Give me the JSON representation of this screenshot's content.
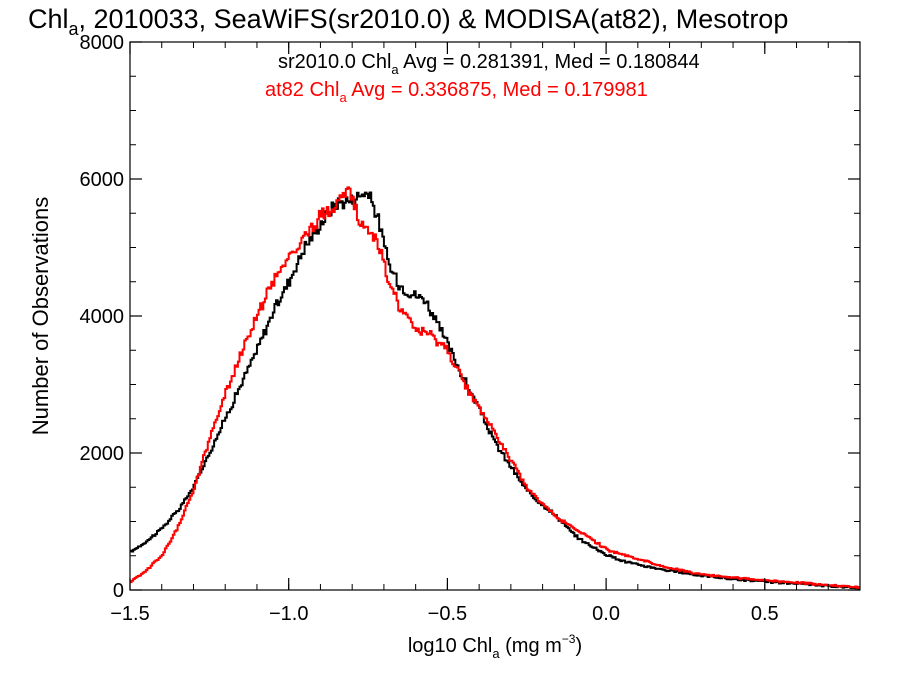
{
  "chart_data": {
    "type": "line",
    "title_parts": {
      "pre": "Chl",
      "sub": "a",
      "post": ", 2010033, SeaWiFS(sr2010.0) & MODISA(at82), Mesotrop"
    },
    "xlabel_parts": {
      "pre": "log10 Chl",
      "sub": "a",
      "mid": " (mg m",
      "sup": "−3",
      "post": ")"
    },
    "ylabel": "Number of Observations",
    "xlim": [
      -1.5,
      0.8
    ],
    "ylim": [
      0,
      8000
    ],
    "xticks": [
      {
        "value": -1.5,
        "label": "−1.5"
      },
      {
        "value": -1.0,
        "label": "−1.0"
      },
      {
        "value": -0.5,
        "label": "−0.5"
      },
      {
        "value": 0.0,
        "label": "0.0"
      },
      {
        "value": 0.5,
        "label": "0.5"
      }
    ],
    "yticks": [
      {
        "value": 0,
        "label": "0"
      },
      {
        "value": 2000,
        "label": "2000"
      },
      {
        "value": 4000,
        "label": "4000"
      },
      {
        "value": 6000,
        "label": "6000"
      },
      {
        "value": 8000,
        "label": "8000"
      }
    ],
    "annotations": [
      {
        "pre": "sr2010.0 Chl",
        "sub": "a",
        "post": " Avg = 0.281391, Med = 0.180844",
        "color": "#000000"
      },
      {
        "pre": "at82 Chl",
        "sub": "a",
        "post": " Avg = 0.336875, Med = 0.179981",
        "color": "#ff0000"
      }
    ],
    "series": [
      {
        "color": "#000000",
        "x": [
          -1.5,
          -1.45,
          -1.4,
          -1.35,
          -1.3,
          -1.25,
          -1.2,
          -1.15,
          -1.1,
          -1.05,
          -1.0,
          -0.95,
          -0.9,
          -0.85,
          -0.8,
          -0.78,
          -0.76,
          -0.74,
          -0.72,
          -0.7,
          -0.68,
          -0.65,
          -0.62,
          -0.6,
          -0.57,
          -0.55,
          -0.5,
          -0.45,
          -0.4,
          -0.35,
          -0.3,
          -0.25,
          -0.2,
          -0.15,
          -0.1,
          -0.05,
          0.0,
          0.05,
          0.1,
          0.2,
          0.3,
          0.4,
          0.5,
          0.6,
          0.7,
          0.8
        ],
        "y": [
          550,
          700,
          900,
          1150,
          1500,
          2000,
          2500,
          3000,
          3500,
          4050,
          4500,
          5000,
          5350,
          5650,
          5700,
          5750,
          5820,
          5700,
          5450,
          5050,
          4700,
          4450,
          4350,
          4300,
          4250,
          4050,
          3600,
          3100,
          2650,
          2150,
          1800,
          1450,
          1250,
          1050,
          800,
          650,
          520,
          430,
          370,
          280,
          210,
          160,
          120,
          90,
          60,
          30
        ]
      },
      {
        "color": "#ff0000",
        "x": [
          -1.5,
          -1.45,
          -1.4,
          -1.35,
          -1.3,
          -1.25,
          -1.2,
          -1.15,
          -1.1,
          -1.05,
          -1.0,
          -0.95,
          -0.9,
          -0.85,
          -0.82,
          -0.8,
          -0.78,
          -0.76,
          -0.74,
          -0.72,
          -0.7,
          -0.65,
          -0.6,
          -0.55,
          -0.5,
          -0.45,
          -0.4,
          -0.35,
          -0.3,
          -0.25,
          -0.2,
          -0.15,
          -0.1,
          -0.05,
          0.0,
          0.05,
          0.1,
          0.2,
          0.3,
          0.4,
          0.5,
          0.6,
          0.7,
          0.8
        ],
        "y": [
          120,
          280,
          500,
          900,
          1450,
          2200,
          2850,
          3450,
          4000,
          4500,
          4850,
          5150,
          5450,
          5650,
          5800,
          5750,
          5400,
          5250,
          5200,
          5100,
          4750,
          4100,
          3800,
          3700,
          3500,
          3050,
          2650,
          2300,
          1900,
          1500,
          1250,
          1050,
          900,
          750,
          600,
          520,
          450,
          320,
          230,
          180,
          140,
          110,
          70,
          40
        ]
      }
    ]
  }
}
